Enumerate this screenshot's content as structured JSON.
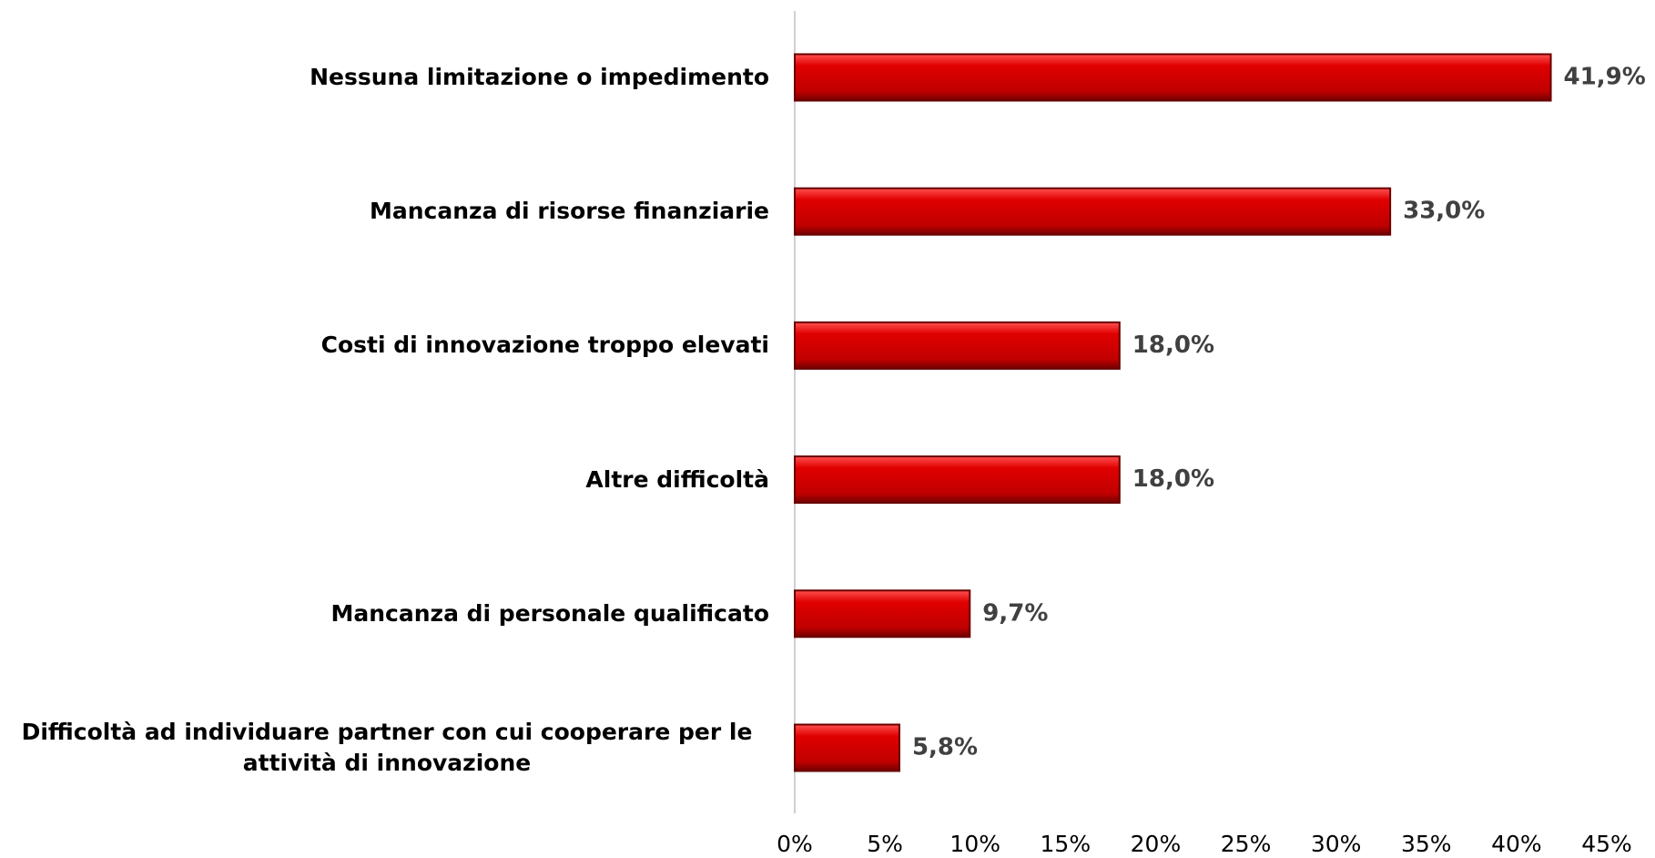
{
  "chart_data": {
    "type": "bar",
    "orientation": "horizontal",
    "categories": [
      "Nessuna limitazione o impedimento",
      "Mancanza di risorse finanziarie",
      "Costi di innovazione troppo elevati",
      "Altre difficoltà",
      "Mancanza di personale qualificato",
      "Difficoltà ad individuare partner con cui cooperare per le attività di innovazione"
    ],
    "values": [
      41.9,
      33.0,
      18.0,
      18.0,
      9.7,
      5.8
    ],
    "value_labels": [
      "41,9%",
      "33,0%",
      "18,0%",
      "18,0%",
      "9,7%",
      "5,8%"
    ],
    "color": "#d00000",
    "xlim": [
      0,
      45
    ],
    "xticks": [
      {
        "value": 0,
        "label": "0%"
      },
      {
        "value": 5,
        "label": "5%"
      },
      {
        "value": 10,
        "label": "10%"
      },
      {
        "value": 15,
        "label": "15%"
      },
      {
        "value": 20,
        "label": "20%"
      },
      {
        "value": 25,
        "label": "25%"
      },
      {
        "value": 30,
        "label": "30%"
      },
      {
        "value": 35,
        "label": "35%"
      },
      {
        "value": 40,
        "label": "40%"
      },
      {
        "value": 45,
        "label": "45%"
      }
    ]
  }
}
